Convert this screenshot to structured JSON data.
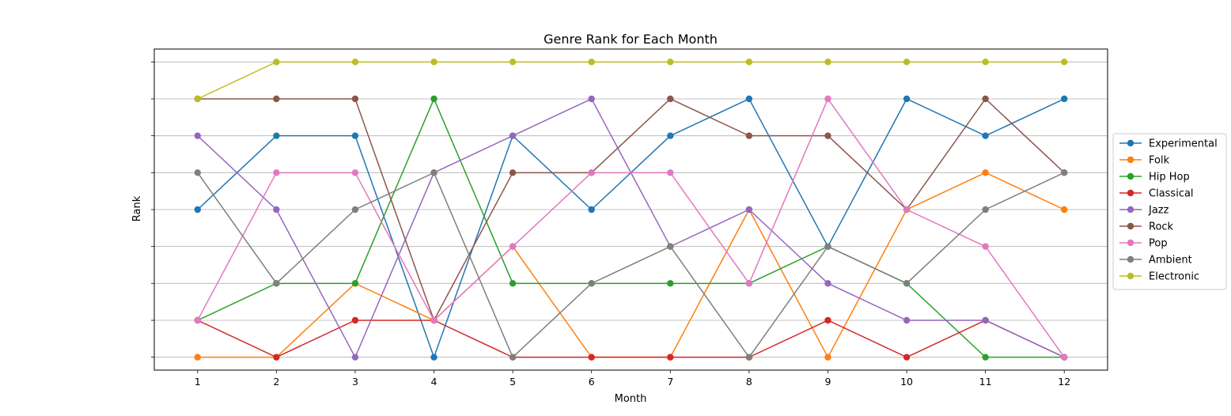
{
  "chart_data": {
    "type": "line",
    "title": "Genre Rank for Each Month",
    "xlabel": "Month",
    "ylabel": "Rank",
    "x": [
      1,
      2,
      3,
      4,
      5,
      6,
      7,
      8,
      9,
      10,
      11,
      12
    ],
    "ylim": [
      0.65,
      9.35
    ],
    "yticks": [
      1,
      2,
      3,
      4,
      5,
      6,
      7,
      8,
      9
    ],
    "grid": "y",
    "legend_position": "right",
    "series": [
      {
        "name": "Experimental",
        "color": "#1f77b4",
        "values": [
          5,
          7,
          7,
          1,
          7,
          5,
          7,
          8,
          4,
          8,
          7,
          8
        ]
      },
      {
        "name": "Folk",
        "color": "#ff7f0e",
        "values": [
          1,
          1,
          3,
          2,
          4,
          1,
          1,
          5,
          1,
          5,
          6,
          5
        ]
      },
      {
        "name": "Hip Hop",
        "color": "#2ca02c",
        "values": [
          2,
          3,
          3,
          8,
          3,
          3,
          3,
          3,
          4,
          3,
          1,
          1
        ]
      },
      {
        "name": "Classical",
        "color": "#d62728",
        "values": [
          2,
          1,
          2,
          2,
          1,
          1,
          1,
          1,
          2,
          1,
          2,
          1
        ]
      },
      {
        "name": "Jazz",
        "color": "#9467bd",
        "values": [
          7,
          5,
          1,
          6,
          7,
          8,
          4,
          5,
          3,
          2,
          2,
          1
        ]
      },
      {
        "name": "Rock",
        "color": "#8c564b",
        "values": [
          8,
          8,
          8,
          2,
          6,
          6,
          8,
          7,
          7,
          5,
          8,
          6
        ]
      },
      {
        "name": "Pop",
        "color": "#e377c2",
        "values": [
          2,
          6,
          6,
          2,
          4,
          6,
          6,
          3,
          8,
          5,
          4,
          1
        ]
      },
      {
        "name": "Ambient",
        "color": "#7f7f7f",
        "values": [
          6,
          3,
          5,
          6,
          1,
          3,
          4,
          1,
          4,
          3,
          5,
          6
        ]
      },
      {
        "name": "Electronic",
        "color": "#bcbd22",
        "values": [
          8,
          9,
          9,
          9,
          9,
          9,
          9,
          9,
          9,
          9,
          9,
          9
        ]
      }
    ]
  }
}
